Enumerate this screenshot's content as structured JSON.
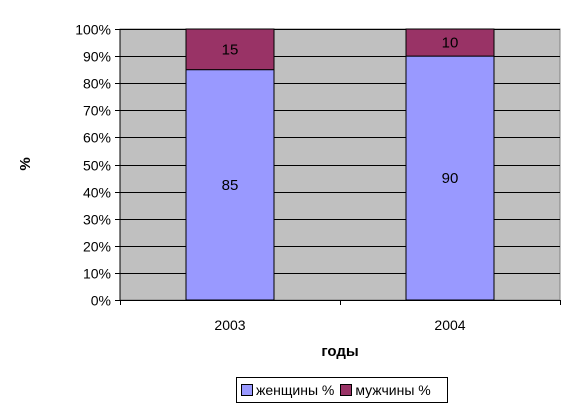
{
  "chart_data": {
    "type": "bar",
    "stacked": true,
    "categories": [
      "2003",
      "2004"
    ],
    "series": [
      {
        "name": "женщины %",
        "values": [
          85,
          90
        ],
        "color": "#9999FF"
      },
      {
        "name": "мужчины %",
        "values": [
          15,
          10
        ],
        "color": "#993366"
      }
    ],
    "xlabel": "годы",
    "ylabel": "%",
    "ylim": [
      0,
      100
    ],
    "y_ticks": [
      "0%",
      "10%",
      "20%",
      "30%",
      "40%",
      "50%",
      "60%",
      "70%",
      "80%",
      "90%",
      "100%"
    ],
    "grid": true,
    "plot_background": "#C0C0C0",
    "legend_position": "bottom"
  }
}
